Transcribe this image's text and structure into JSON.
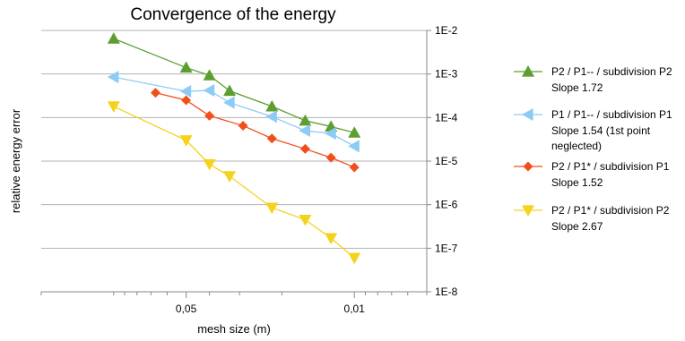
{
  "chart_data": {
    "type": "line",
    "title": "Convergence of the energy",
    "xlabel": "mesh size (m)",
    "ylabel": "relative energy error",
    "x_scale": "log",
    "x_reversed": true,
    "xlim": [
      0.2,
      0.005
    ],
    "x_ticks": [
      {
        "value": 0.05,
        "label": "0,05"
      },
      {
        "value": 0.01,
        "label": "0,01"
      }
    ],
    "y_scale": "log",
    "ylim": [
      1e-08,
      0.01
    ],
    "y_ticks": [
      {
        "value": 0.01,
        "label": "1E-2"
      },
      {
        "value": 0.001,
        "label": "1E-3"
      },
      {
        "value": 0.0001,
        "label": "1E-4"
      },
      {
        "value": 1e-05,
        "label": "1E-5"
      },
      {
        "value": 1e-06,
        "label": "1E-6"
      },
      {
        "value": 1e-07,
        "label": "1E-7"
      },
      {
        "value": 1e-08,
        "label": "1E-8"
      }
    ],
    "grid": "horizontal",
    "legend_position": "right",
    "series": [
      {
        "name": "P2 / P1-- / subdivision P2",
        "slope_label": "Slope 1.72",
        "color": "#5c9e2f",
        "marker": "triangle-up",
        "x": [
          0.1,
          0.05,
          0.04,
          0.033,
          0.022,
          0.016,
          0.0125,
          0.01
        ],
        "y": [
          0.0065,
          0.0014,
          0.00093,
          0.00041,
          0.00018,
          8.5e-05,
          6.2e-05,
          4.5e-05
        ]
      },
      {
        "name": "P1 / P1-- / subdivision P1",
        "slope_label": "Slope 1.54 (1st point neglected)",
        "color": "#8ecbf4",
        "marker": "triangle-left",
        "x": [
          0.1,
          0.05,
          0.04,
          0.033,
          0.022,
          0.016,
          0.0125,
          0.01
        ],
        "y": [
          0.00085,
          0.0004,
          0.00042,
          0.00022,
          0.000105,
          5e-05,
          4.3e-05,
          2.2e-05
        ]
      },
      {
        "name": "P2 / P1* / subdivision P1",
        "slope_label": "Slope 1.52",
        "color": "#f04f1a",
        "marker": "diamond",
        "x": [
          0.067,
          0.05,
          0.04,
          0.029,
          0.022,
          0.016,
          0.0125,
          0.01
        ],
        "y": [
          0.00037,
          0.00025,
          0.00011,
          6.5e-05,
          3.3e-05,
          1.9e-05,
          1.2e-05,
          7.2e-06
        ]
      },
      {
        "name": "P2 / P1* / subdivision P2",
        "slope_label": "Slope 2.67",
        "color": "#f5d21c",
        "marker": "triangle-down",
        "x": [
          0.1,
          0.05,
          0.04,
          0.033,
          0.022,
          0.016,
          0.0125,
          0.01
        ],
        "y": [
          0.00018,
          3e-05,
          8.5e-06,
          4.5e-06,
          8.5e-07,
          4.5e-07,
          1.7e-07,
          6e-08
        ]
      }
    ]
  }
}
